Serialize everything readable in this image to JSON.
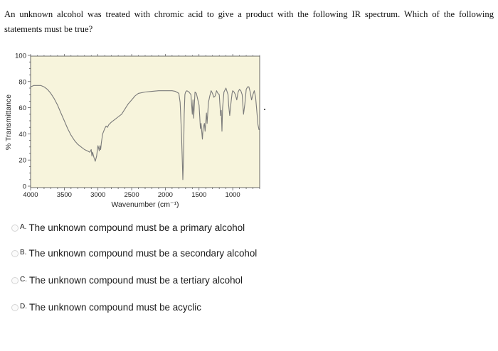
{
  "question": {
    "text": "An unknown alcohol was treated with chromic acid to give a product with the following IR spectrum. Which of the following statements must be true?"
  },
  "options": [
    {
      "letter": "A.",
      "text": "The unknown compound must be a primary alcohol"
    },
    {
      "letter": "B.",
      "text": "The unknown compound must be a secondary alcohol"
    },
    {
      "letter": "C.",
      "text": "The unknown compound must be a tertiary alcohol"
    },
    {
      "letter": "D.",
      "text": "The unknown compound must be acyclic"
    }
  ],
  "colors": {
    "plot_background": "#f7f4dc",
    "trace": "#7a7a7a",
    "axis": "#444444"
  },
  "chart_data": {
    "type": "line",
    "title": "",
    "xlabel": "Wavenumber (cm⁻¹)",
    "ylabel": "% Transmittance",
    "xlim": [
      4000,
      600
    ],
    "ylim": [
      0,
      100
    ],
    "x_reversed": true,
    "xticks": [
      4000,
      3500,
      3000,
      2500,
      2000,
      1500,
      1000
    ],
    "yticks": [
      0,
      20,
      40,
      60,
      80,
      100
    ],
    "grid": false,
    "series": [
      {
        "name": "",
        "points": [
          [
            4000,
            76
          ],
          [
            3950,
            77
          ],
          [
            3850,
            77
          ],
          [
            3800,
            76
          ],
          [
            3750,
            74
          ],
          [
            3700,
            71
          ],
          [
            3650,
            67
          ],
          [
            3600,
            62
          ],
          [
            3550,
            56
          ],
          [
            3500,
            50
          ],
          [
            3450,
            44
          ],
          [
            3400,
            39
          ],
          [
            3350,
            35
          ],
          [
            3300,
            32
          ],
          [
            3250,
            30
          ],
          [
            3200,
            28
          ],
          [
            3160,
            27
          ],
          [
            3120,
            26
          ],
          [
            3100,
            28
          ],
          [
            3090,
            23
          ],
          [
            3080,
            26
          ],
          [
            3060,
            22
          ],
          [
            3040,
            19
          ],
          [
            3020,
            23
          ],
          [
            3000,
            31
          ],
          [
            2980,
            27
          ],
          [
            2970,
            31
          ],
          [
            2960,
            28
          ],
          [
            2950,
            33
          ],
          [
            2930,
            40
          ],
          [
            2900,
            44
          ],
          [
            2880,
            46
          ],
          [
            2860,
            45
          ],
          [
            2840,
            47
          ],
          [
            2800,
            49
          ],
          [
            2750,
            51
          ],
          [
            2700,
            53
          ],
          [
            2650,
            55
          ],
          [
            2600,
            59
          ],
          [
            2550,
            63
          ],
          [
            2500,
            66
          ],
          [
            2450,
            69
          ],
          [
            2400,
            71
          ],
          [
            2300,
            72
          ],
          [
            2200,
            72.5
          ],
          [
            2100,
            73
          ],
          [
            2000,
            73
          ],
          [
            1900,
            73
          ],
          [
            1850,
            72.5
          ],
          [
            1800,
            71
          ],
          [
            1780,
            64
          ],
          [
            1760,
            40
          ],
          [
            1750,
            22
          ],
          [
            1740,
            5
          ],
          [
            1730,
            22
          ],
          [
            1720,
            55
          ],
          [
            1710,
            70
          ],
          [
            1700,
            72
          ],
          [
            1680,
            73
          ],
          [
            1650,
            72
          ],
          [
            1620,
            70
          ],
          [
            1600,
            55
          ],
          [
            1590,
            66
          ],
          [
            1580,
            52
          ],
          [
            1560,
            72
          ],
          [
            1540,
            71
          ],
          [
            1500,
            62
          ],
          [
            1480,
            44
          ],
          [
            1470,
            48
          ],
          [
            1450,
            36
          ],
          [
            1440,
            44
          ],
          [
            1420,
            48
          ],
          [
            1410,
            42
          ],
          [
            1390,
            56
          ],
          [
            1380,
            48
          ],
          [
            1360,
            64
          ],
          [
            1340,
            69
          ],
          [
            1320,
            73
          ],
          [
            1300,
            71
          ],
          [
            1280,
            68
          ],
          [
            1260,
            69
          ],
          [
            1240,
            73
          ],
          [
            1220,
            71
          ],
          [
            1200,
            70
          ],
          [
            1180,
            54
          ],
          [
            1170,
            58
          ],
          [
            1160,
            42
          ],
          [
            1150,
            60
          ],
          [
            1130,
            72
          ],
          [
            1100,
            75
          ],
          [
            1070,
            70
          ],
          [
            1060,
            62
          ],
          [
            1045,
            54
          ],
          [
            1030,
            62
          ],
          [
            1010,
            71
          ],
          [
            1000,
            73
          ],
          [
            980,
            72
          ],
          [
            960,
            70
          ],
          [
            940,
            66
          ],
          [
            920,
            72
          ],
          [
            900,
            74
          ],
          [
            880,
            73
          ],
          [
            860,
            70
          ],
          [
            840,
            55
          ],
          [
            820,
            63
          ],
          [
            800,
            74
          ],
          [
            780,
            76
          ],
          [
            760,
            76
          ],
          [
            740,
            72
          ],
          [
            720,
            66
          ],
          [
            700,
            70
          ],
          [
            680,
            73
          ],
          [
            660,
            68
          ],
          [
            640,
            56
          ],
          [
            625,
            47
          ],
          [
            610,
            43
          ]
        ]
      }
    ]
  }
}
